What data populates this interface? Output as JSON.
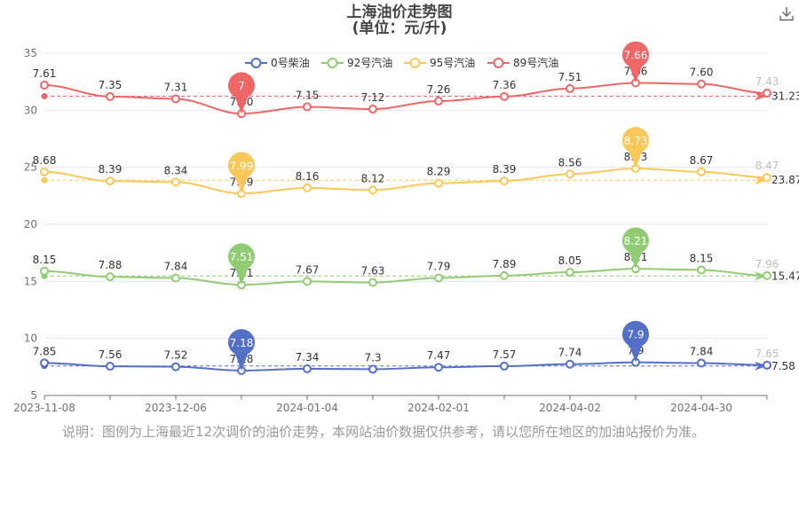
{
  "title": "上海油价走势图",
  "subtitle": "(单位：元/升)",
  "note": "说明：图例为上海最近12次调价的油价走势，本网站油价数据仅供参考，请以您所在地区的加油站报价为准。",
  "chart_data": {
    "type": "line",
    "title": "上海油价走势图",
    "subtitle": "(单位：元/升)",
    "xlabel": "",
    "ylabel": "",
    "ylim": [
      5,
      35
    ],
    "yticks": [
      5,
      10,
      15,
      20,
      25,
      30,
      35
    ],
    "x_tick_labels": [
      "2023-11-08",
      "2023-12-06",
      "2024-01-04",
      "2024-02-01",
      "2024-04-02",
      "2024-04-30"
    ],
    "x_tick_indices": [
      0,
      2,
      4,
      6,
      8,
      10
    ],
    "legend_position": "top",
    "series": [
      {
        "name": "0号柴油",
        "color": "#5470c6",
        "labels": [
          "7.85",
          "7.56",
          "7.52",
          "7.18",
          "7.34",
          "7.3",
          "7.47",
          "7.57",
          "7.74",
          "7.9",
          "7.84",
          "7.65"
        ],
        "values": [
          7.85,
          7.56,
          7.52,
          7.18,
          7.34,
          7.3,
          7.47,
          7.57,
          7.74,
          7.9,
          7.84,
          7.65
        ],
        "min_label": "7.18",
        "max_label": "7.9",
        "avg_label": "7.58",
        "avg": 7.58
      },
      {
        "name": "92号汽油",
        "color": "#91cc75",
        "labels": [
          "8.15",
          "7.88",
          "7.84",
          "7.51",
          "7.67",
          "7.63",
          "7.79",
          "7.89",
          "8.05",
          "8.21",
          "8.15",
          "7.96"
        ],
        "values": [
          15.9,
          15.4,
          15.3,
          14.7,
          15.0,
          14.9,
          15.3,
          15.5,
          15.8,
          16.1,
          16.0,
          15.5
        ],
        "min_label": "7.51",
        "max_label": "8.21",
        "avg_label": "15.47",
        "avg": 15.47
      },
      {
        "name": "95号汽油",
        "color": "#fac858",
        "labels": [
          "8.68",
          "8.39",
          "8.34",
          "7.99",
          "8.16",
          "8.12",
          "8.29",
          "8.39",
          "8.56",
          "8.73",
          "8.67",
          "8.47"
        ],
        "values": [
          24.6,
          23.8,
          23.7,
          22.7,
          23.2,
          23.0,
          23.6,
          23.8,
          24.4,
          24.9,
          24.6,
          24.1
        ],
        "min_label": "7.99",
        "max_label": "8.73",
        "avg_label": "23.87",
        "avg": 23.87
      },
      {
        "name": "89号汽油",
        "color": "#ee6666",
        "labels": [
          "7.61",
          "7.35",
          "7.31",
          "7.00",
          "7.15",
          "7.12",
          "7.26",
          "7.36",
          "7.51",
          "7.66",
          "7.60",
          "7.43"
        ],
        "values": [
          32.2,
          31.2,
          31.0,
          29.7,
          30.3,
          30.1,
          30.8,
          31.2,
          31.9,
          32.4,
          32.3,
          31.5
        ],
        "min_label": "7",
        "max_label": "7.66",
        "avg_label": "31.23",
        "avg": 31.23
      }
    ]
  }
}
